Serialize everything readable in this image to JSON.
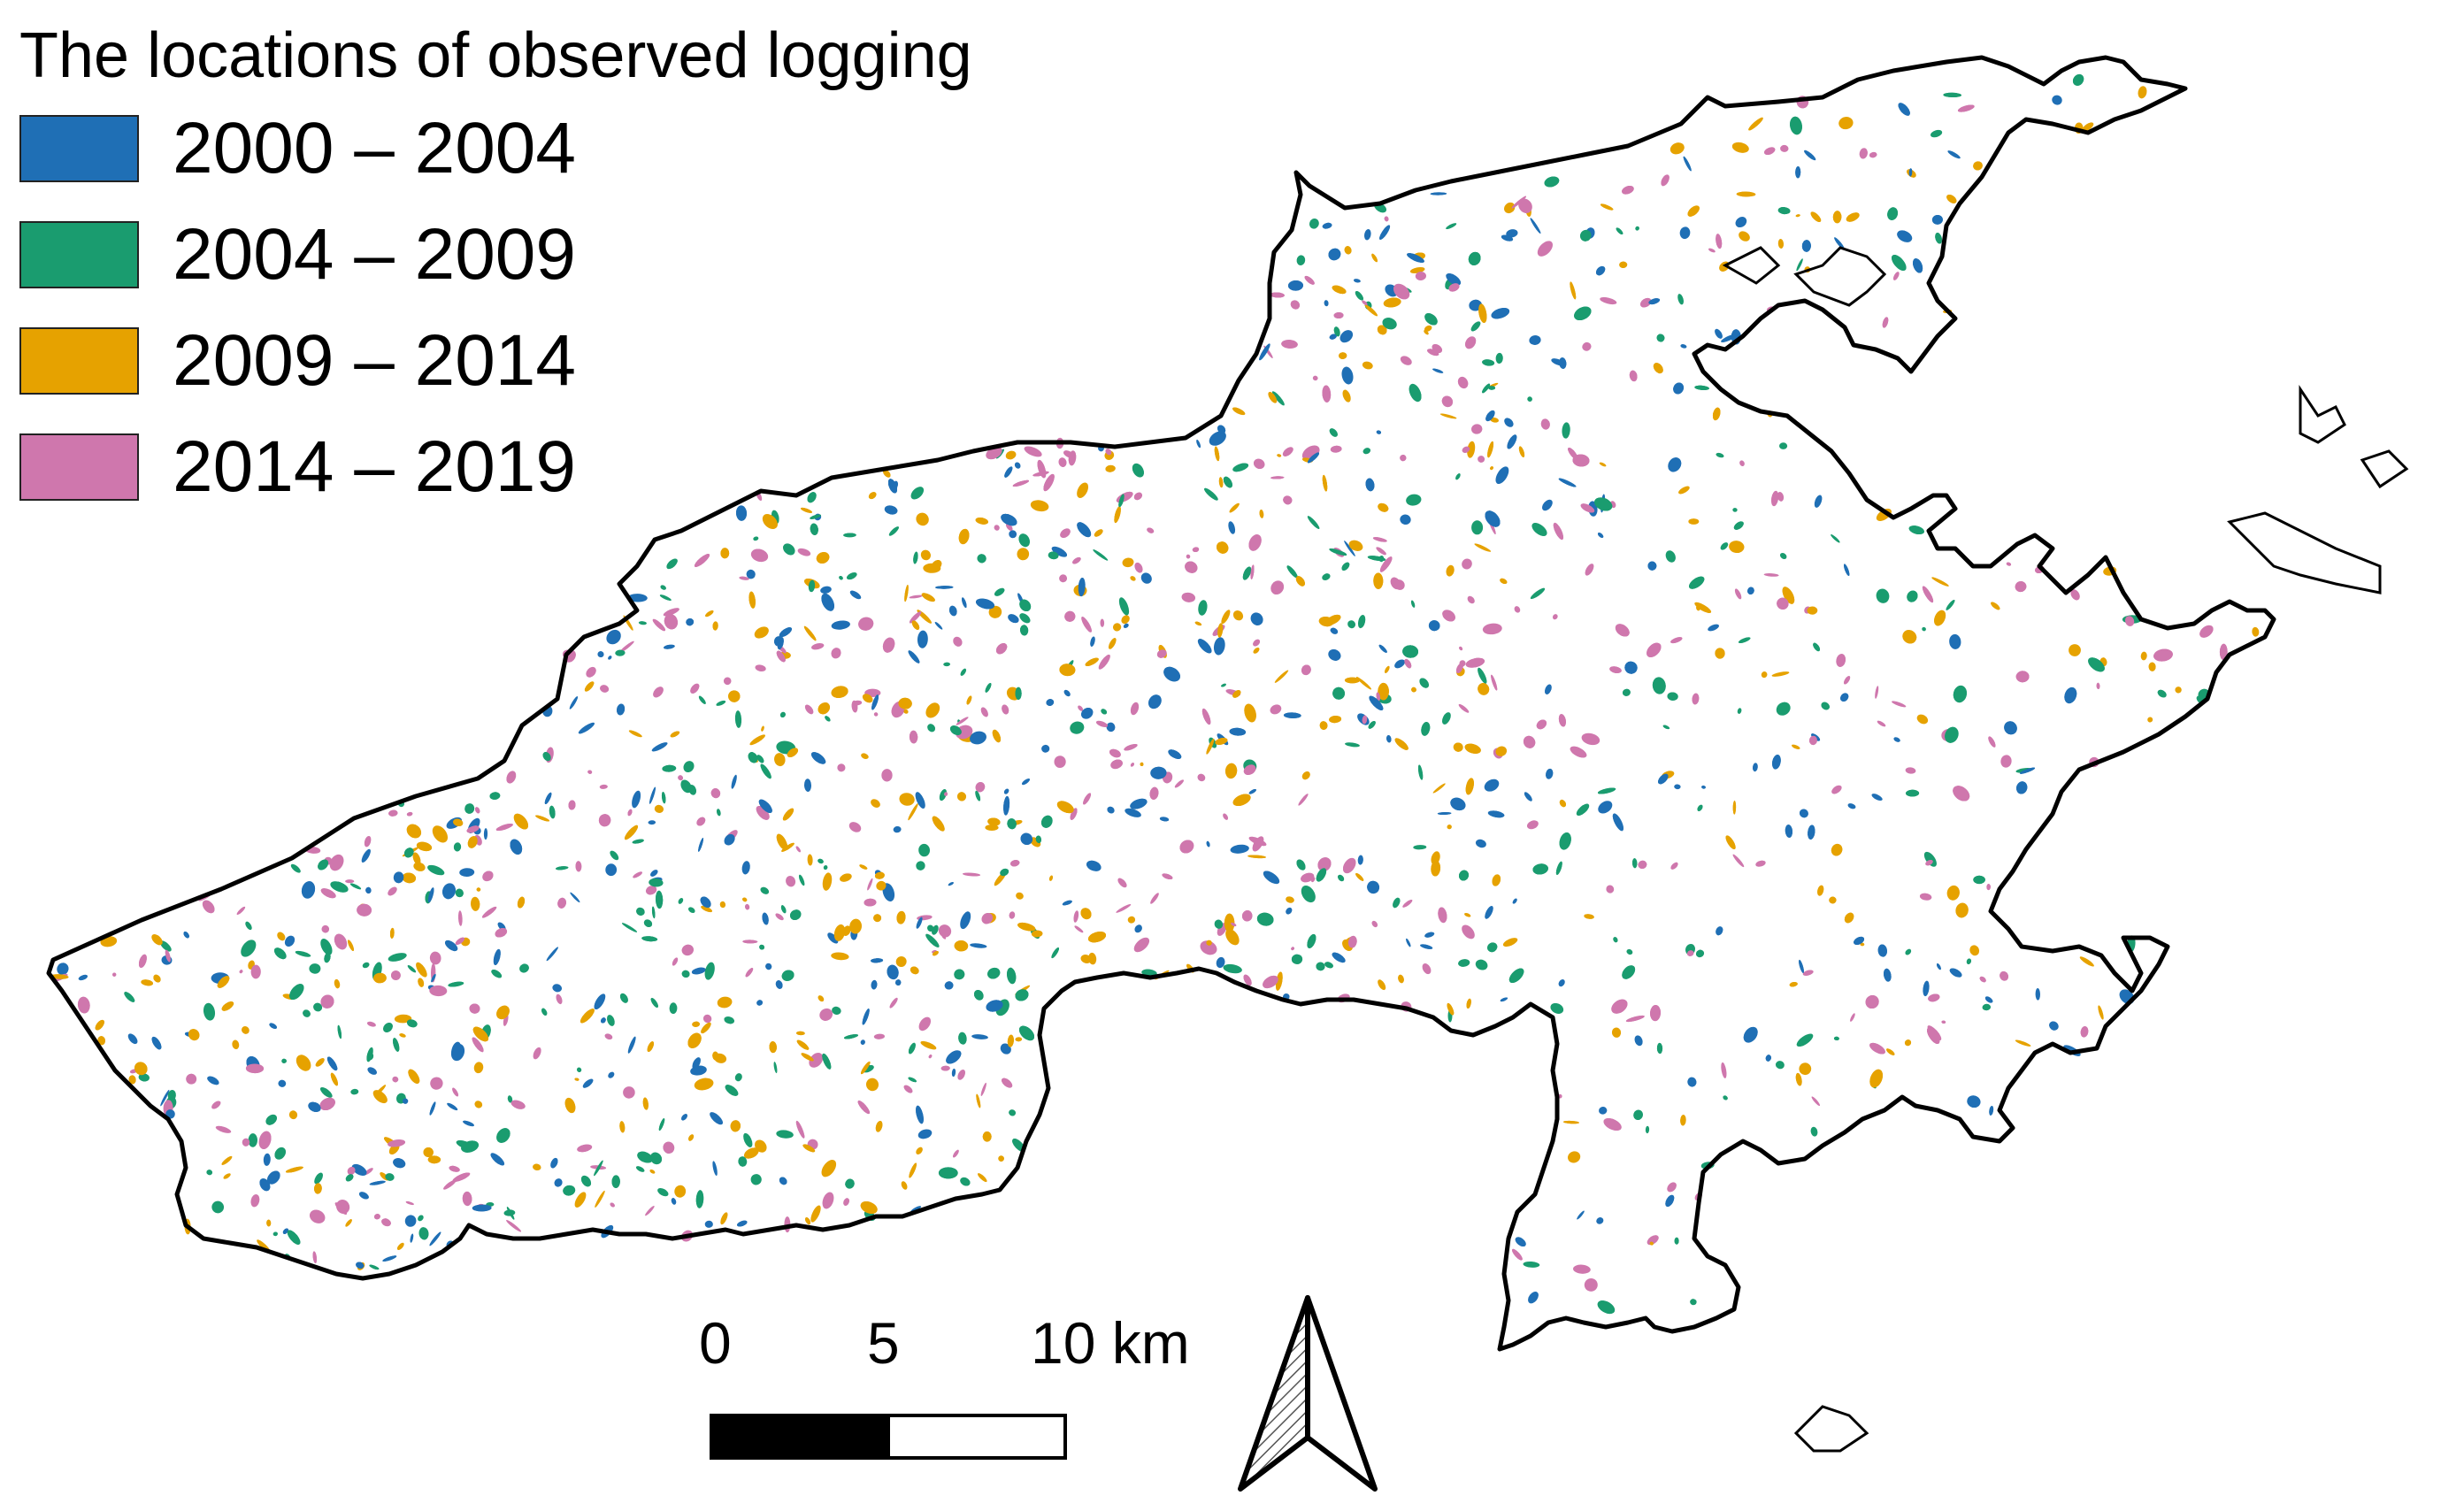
{
  "legend": {
    "title": "The locations of observed logging",
    "items": [
      {
        "label": "2000 – 2004",
        "color": "#1f6fb5"
      },
      {
        "label": "2004 – 2009",
        "color": "#1a9c6f"
      },
      {
        "label": "2009 – 2014",
        "color": "#e6a200"
      },
      {
        "label": "2014 – 2019",
        "color": "#cf77ad"
      }
    ]
  },
  "scale_bar": {
    "labels": [
      "0",
      "5",
      "10 km"
    ]
  },
  "north_arrow": {
    "icon": "north-arrow-icon"
  },
  "colors": {
    "boundary": "#000000",
    "background": "#ffffff"
  }
}
